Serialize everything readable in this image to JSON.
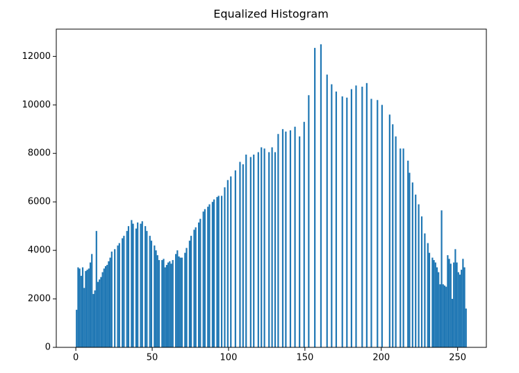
{
  "chart_data": {
    "type": "histogram",
    "title": "Equalized Histogram",
    "color": "#1f77b4",
    "bins": [
      0,
      1,
      2,
      3,
      4,
      5,
      6,
      7,
      8,
      9,
      10,
      11,
      12,
      13,
      14,
      15,
      16,
      17,
      18,
      19,
      20,
      21,
      22,
      23,
      24,
      25,
      26,
      27,
      28,
      29,
      30,
      31,
      32,
      33,
      34,
      35,
      36,
      37,
      38,
      39,
      40,
      41,
      42,
      43,
      44,
      45,
      46,
      47,
      48,
      49,
      50,
      51,
      52,
      53,
      54,
      55,
      56,
      57,
      58,
      59,
      60,
      61,
      62,
      63,
      64,
      65,
      66,
      67,
      68,
      69,
      70,
      71,
      72,
      73,
      74,
      75,
      76,
      77,
      78,
      79,
      80,
      81,
      82,
      83,
      84,
      85,
      86,
      87,
      88,
      89,
      90,
      91,
      92,
      93,
      94,
      95,
      96,
      97,
      98,
      99,
      100,
      101,
      102,
      103,
      104,
      105,
      106,
      107,
      108,
      109,
      110,
      111,
      112,
      113,
      114,
      115,
      116,
      117,
      118,
      119,
      120,
      121,
      122,
      123,
      124,
      125,
      126,
      127,
      128,
      129,
      130,
      131,
      132,
      133,
      134,
      135,
      136,
      137,
      138,
      139,
      140,
      141,
      142,
      143,
      144,
      145,
      146,
      147,
      148,
      149,
      150,
      151,
      152,
      153,
      154,
      155,
      156,
      157,
      158,
      159,
      160,
      161,
      162,
      163,
      164,
      165,
      166,
      167,
      168,
      169,
      170,
      171,
      172,
      173,
      174,
      175,
      176,
      177,
      178,
      179,
      180,
      181,
      182,
      183,
      184,
      185,
      186,
      187,
      188,
      189,
      190,
      191,
      192,
      193,
      194,
      195,
      196,
      197,
      198,
      199,
      200,
      201,
      202,
      203,
      204,
      205,
      206,
      207,
      208,
      209,
      210,
      211,
      212,
      213,
      214,
      215,
      216,
      217,
      218,
      219,
      220,
      221,
      222,
      223,
      224,
      225,
      226,
      227,
      228,
      229,
      230,
      231,
      232,
      233,
      234,
      235,
      236,
      237,
      238,
      239,
      240,
      241,
      242,
      243,
      244,
      245,
      246,
      247,
      248,
      249,
      250,
      251,
      252,
      253,
      254,
      255,
      256
    ],
    "values": [
      1550,
      3300,
      3250,
      2950,
      3300,
      2450,
      3150,
      3200,
      3250,
      3500,
      3850,
      2200,
      2350,
      4800,
      2700,
      2800,
      2900,
      3100,
      3250,
      3350,
      3400,
      3550,
      3700,
      3950,
      0,
      4050,
      0,
      4200,
      4300,
      0,
      4500,
      4600,
      0,
      4800,
      5000,
      0,
      5250,
      5100,
      0,
      4900,
      5150,
      0,
      5100,
      5200,
      0,
      5000,
      4800,
      0,
      4600,
      4400,
      0,
      4200,
      4000,
      3800,
      3600,
      0,
      3600,
      3650,
      3300,
      3400,
      3500,
      3550,
      3450,
      3600,
      0,
      3850,
      4000,
      3750,
      3700,
      3700,
      0,
      3900,
      4100,
      0,
      4400,
      4600,
      0,
      4850,
      4950,
      0,
      5150,
      5300,
      0,
      5600,
      5700,
      0,
      5800,
      5900,
      0,
      6000,
      6100,
      0,
      6200,
      6250,
      0,
      6250,
      0,
      6600,
      0,
      6900,
      0,
      7050,
      0,
      0,
      7300,
      0,
      0,
      7650,
      0,
      7550,
      0,
      7950,
      0,
      0,
      7850,
      0,
      7950,
      0,
      0,
      8050,
      0,
      8250,
      0,
      8200,
      0,
      0,
      8050,
      0,
      8250,
      0,
      8050,
      0,
      8800,
      0,
      0,
      9000,
      0,
      8900,
      0,
      0,
      8950,
      0,
      0,
      9100,
      0,
      0,
      8700,
      0,
      0,
      9300,
      0,
      0,
      10400,
      0,
      0,
      0,
      12350,
      0,
      0,
      0,
      12500,
      0,
      0,
      0,
      11250,
      0,
      0,
      10850,
      0,
      0,
      10550,
      0,
      0,
      0,
      10350,
      0,
      0,
      10300,
      0,
      0,
      10650,
      0,
      0,
      10800,
      0,
      0,
      0,
      10750,
      0,
      0,
      10900,
      0,
      0,
      10250,
      0,
      0,
      0,
      10200,
      0,
      0,
      10000,
      0,
      0,
      0,
      0,
      9600,
      0,
      9200,
      0,
      8700,
      0,
      0,
      8200,
      0,
      8200,
      0,
      0,
      7700,
      7200,
      0,
      6800,
      0,
      6300,
      0,
      5900,
      0,
      5400,
      0,
      4700,
      0,
      4300,
      3900,
      0,
      3700,
      3600,
      3500,
      3300,
      3100,
      2600,
      5650,
      2600,
      2550,
      2500,
      3800,
      3650,
      3450,
      2000,
      3500,
      4050,
      3500,
      3100,
      3000,
      3200,
      3650,
      3300,
      1600
    ],
    "xlim": [
      -12.8,
      268.8
    ],
    "xticks": [
      0,
      50,
      100,
      150,
      200,
      250
    ],
    "ylim": [
      0,
      13125
    ],
    "yticks": [
      0,
      2000,
      4000,
      6000,
      8000,
      10000,
      12000
    ]
  }
}
